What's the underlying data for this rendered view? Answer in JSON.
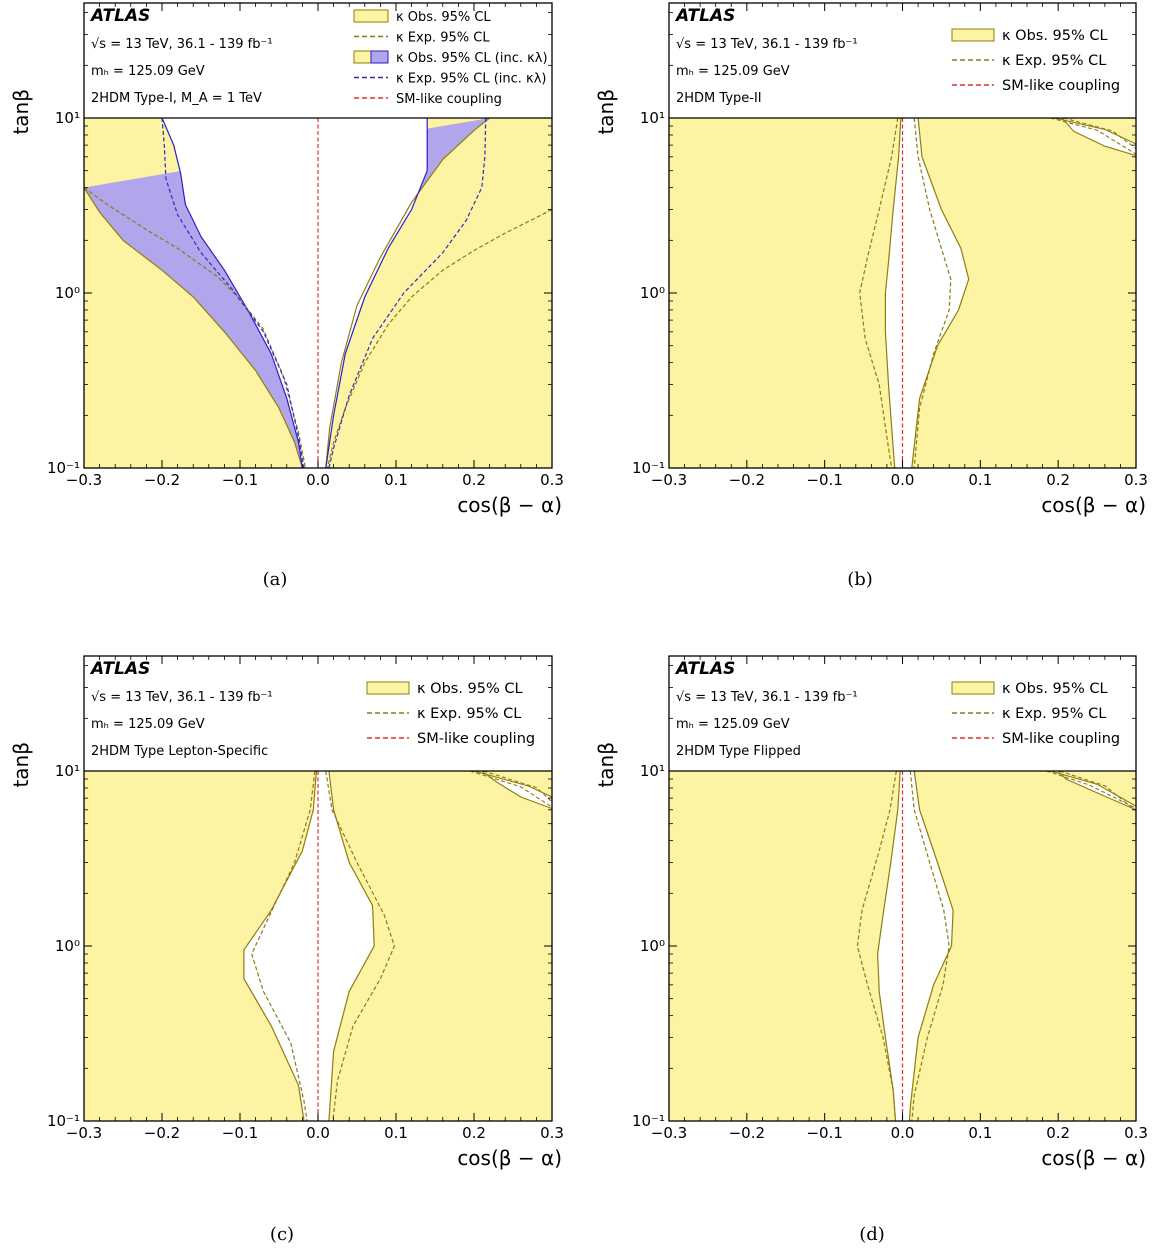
{
  "colors": {
    "obs_fill": "#fcf3a3",
    "obs_line": "#8f7d0f",
    "exp_line": "#8c7a14",
    "inc_fill": "#b1a6ec",
    "inc_line": "#2a1fc8",
    "inc_exp_line": "#2c2cc0",
    "sm_line": "#e0302e"
  },
  "panels": [
    {
      "caption": "(a)",
      "atlas": "ATLAS",
      "info": [
        "√s = 13 TeV, 36.1 - 139 fb⁻¹",
        "mₕ = 125.09 GeV",
        "2HDM Type-I, M_A = 1 TeV"
      ],
      "legend": [
        "κ Obs. 95% CL",
        "κ Exp. 95% CL",
        "κ Obs. 95% CL (inc. κλ)",
        "κ Exp. 95% CL (inc. κλ)",
        "SM-like coupling"
      ],
      "xlabel": "cos(β − α)",
      "ylabel": "tanβ"
    },
    {
      "caption": "(b)",
      "atlas": "ATLAS",
      "info": [
        "√s = 13 TeV, 36.1 - 139 fb⁻¹",
        "mₕ = 125.09 GeV",
        "2HDM Type-II"
      ],
      "legend": [
        "κ Obs. 95% CL",
        "κ Exp. 95% CL",
        "SM-like coupling"
      ],
      "xlabel": "cos(β − α)",
      "ylabel": "tanβ"
    },
    {
      "caption": "(c)",
      "atlas": "ATLAS",
      "info": [
        "√s = 13 TeV, 36.1 - 139 fb⁻¹",
        "mₕ = 125.09 GeV",
        "2HDM Type Lepton-Specific"
      ],
      "legend": [
        "κ Obs. 95% CL",
        "κ Exp. 95% CL",
        "SM-like coupling"
      ],
      "xlabel": "cos(β − α)",
      "ylabel": "tanβ"
    },
    {
      "caption": "(d)",
      "atlas": "ATLAS",
      "info": [
        "√s = 13 TeV, 36.1 - 139 fb⁻¹",
        "mₕ = 125.09 GeV",
        "2HDM Type Flipped"
      ],
      "legend": [
        "κ Obs. 95% CL",
        "κ Exp. 95% CL",
        "SM-like coupling"
      ],
      "xlabel": "cos(β − α)",
      "ylabel": "tanβ"
    }
  ],
  "chart_data": [
    {
      "type": "area",
      "x_axis": {
        "range": [
          -0.3,
          0.3
        ],
        "ticks": [
          "−0.3",
          "−0.2",
          "−0.1",
          "0.0",
          "0.1",
          "0.2",
          "0.3"
        ]
      },
      "y_axis": {
        "scale": "log",
        "range": [
          0.1,
          10
        ],
        "ticks": [
          "10⁻¹",
          "10⁰",
          "10¹"
        ]
      },
      "sm_line_x": 0.0,
      "obs_allowed": {
        "left": [
          [
            -0.3,
            4.0
          ],
          [
            -0.28,
            2.9
          ],
          [
            -0.25,
            2.0
          ],
          [
            -0.2,
            1.35
          ],
          [
            -0.16,
            0.95
          ],
          [
            -0.12,
            0.6
          ],
          [
            -0.08,
            0.36
          ],
          [
            -0.05,
            0.22
          ],
          [
            -0.03,
            0.14
          ],
          [
            -0.02,
            0.1
          ]
        ],
        "right": [
          [
            0.22,
            10.0
          ],
          [
            0.2,
            8.5
          ],
          [
            0.16,
            5.8
          ],
          [
            0.12,
            3.3
          ],
          [
            0.08,
            1.6
          ],
          [
            0.05,
            0.85
          ],
          [
            0.03,
            0.4
          ],
          [
            0.015,
            0.17
          ],
          [
            0.01,
            0.1
          ]
        ]
      },
      "exp_allowed": {
        "left": [
          [
            -0.3,
            4.0
          ],
          [
            -0.27,
            3.2
          ],
          [
            -0.22,
            2.3
          ],
          [
            -0.18,
            1.8
          ],
          [
            -0.13,
            1.25
          ],
          [
            -0.1,
            0.92
          ],
          [
            -0.07,
            0.62
          ],
          [
            -0.045,
            0.34
          ],
          [
            -0.025,
            0.16
          ],
          [
            -0.016,
            0.1
          ]
        ],
        "right": [
          [
            0.3,
            3.0
          ],
          [
            0.28,
            2.7
          ],
          [
            0.24,
            2.2
          ],
          [
            0.2,
            1.75
          ],
          [
            0.16,
            1.35
          ],
          [
            0.12,
            0.95
          ],
          [
            0.09,
            0.66
          ],
          [
            0.06,
            0.4
          ],
          [
            0.035,
            0.22
          ],
          [
            0.02,
            0.14
          ],
          [
            0.012,
            0.1
          ]
        ]
      },
      "inc_kl_obs_allowed": {
        "left": [
          [
            -0.2,
            10.0
          ],
          [
            -0.185,
            7.0
          ],
          [
            -0.176,
            4.8
          ],
          [
            -0.17,
            3.2
          ],
          [
            -0.15,
            2.1
          ],
          [
            -0.12,
            1.35
          ],
          [
            -0.09,
            0.8
          ],
          [
            -0.06,
            0.45
          ],
          [
            -0.04,
            0.25
          ],
          [
            -0.025,
            0.14
          ],
          [
            -0.02,
            0.1
          ]
        ],
        "right": [
          [
            0.14,
            10.0
          ],
          [
            0.14,
            8.0
          ],
          [
            0.14,
            5.0
          ],
          [
            0.12,
            3.0
          ],
          [
            0.09,
            1.8
          ],
          [
            0.06,
            0.95
          ],
          [
            0.035,
            0.45
          ],
          [
            0.02,
            0.2
          ],
          [
            0.01,
            0.1
          ]
        ]
      },
      "inc_kl_exp_allowed": {
        "left": [
          [
            -0.2,
            10.0
          ],
          [
            -0.197,
            7.0
          ],
          [
            -0.195,
            4.5
          ],
          [
            -0.18,
            2.8
          ],
          [
            -0.15,
            1.7
          ],
          [
            -0.11,
            1.05
          ],
          [
            -0.07,
            0.6
          ],
          [
            -0.04,
            0.3
          ],
          [
            -0.025,
            0.15
          ],
          [
            -0.018,
            0.1
          ]
        ],
        "right": [
          [
            0.215,
            10.0
          ],
          [
            0.214,
            6.0
          ],
          [
            0.21,
            4.0
          ],
          [
            0.19,
            2.6
          ],
          [
            0.16,
            1.7
          ],
          [
            0.11,
            1.0
          ],
          [
            0.07,
            0.55
          ],
          [
            0.04,
            0.26
          ],
          [
            0.02,
            0.13
          ],
          [
            0.014,
            0.1
          ]
        ]
      }
    },
    {
      "type": "area",
      "x_axis": {
        "range": [
          -0.3,
          0.3
        ],
        "ticks": [
          "−0.3",
          "−0.2",
          "−0.1",
          "0.0",
          "0.1",
          "0.2",
          "0.3"
        ]
      },
      "y_axis": {
        "scale": "log",
        "range": [
          0.1,
          10
        ],
        "ticks": [
          "10⁻¹",
          "10⁰",
          "10¹"
        ]
      },
      "sm_line_x": 0.0,
      "obs_allowed": {
        "left": [
          [
            -0.002,
            10.0
          ],
          [
            -0.005,
            6.0
          ],
          [
            -0.012,
            3.0
          ],
          [
            -0.018,
            1.5
          ],
          [
            -0.022,
            1.0
          ],
          [
            -0.022,
            0.6
          ],
          [
            -0.018,
            0.3
          ],
          [
            -0.013,
            0.15
          ],
          [
            -0.01,
            0.1
          ]
        ],
        "right": [
          [
            0.02,
            10.0
          ],
          [
            0.025,
            6.0
          ],
          [
            0.05,
            3.0
          ],
          [
            0.075,
            1.8
          ],
          [
            0.085,
            1.2
          ],
          [
            0.072,
            0.8
          ],
          [
            0.045,
            0.5
          ],
          [
            0.022,
            0.25
          ],
          [
            0.012,
            0.1
          ]
        ]
      },
      "exp_allowed": {
        "left": [
          [
            -0.006,
            10.0
          ],
          [
            -0.014,
            6.0
          ],
          [
            -0.03,
            3.0
          ],
          [
            -0.045,
            1.6
          ],
          [
            -0.055,
            1.0
          ],
          [
            -0.048,
            0.55
          ],
          [
            -0.03,
            0.3
          ],
          [
            -0.02,
            0.15
          ],
          [
            -0.014,
            0.1
          ]
        ],
        "right": [
          [
            0.015,
            10.0
          ],
          [
            0.02,
            6.0
          ],
          [
            0.035,
            3.0
          ],
          [
            0.05,
            1.8
          ],
          [
            0.062,
            1.2
          ],
          [
            0.06,
            0.8
          ],
          [
            0.04,
            0.45
          ],
          [
            0.022,
            0.22
          ],
          [
            0.015,
            0.1
          ]
        ]
      },
      "obs_allowed_corner": [
        [
          0.195,
          10.0
        ],
        [
          0.26,
          8.6
        ],
        [
          0.3,
          7.1
        ],
        [
          0.3,
          6.1
        ],
        [
          0.26,
          6.9
        ],
        [
          0.22,
          8.4
        ],
        [
          0.205,
          10.0
        ]
      ]
    },
    {
      "type": "area",
      "x_axis": {
        "range": [
          -0.3,
          0.3
        ],
        "ticks": [
          "−0.3",
          "−0.2",
          "−0.1",
          "0.0",
          "0.1",
          "0.2",
          "0.3"
        ]
      },
      "y_axis": {
        "scale": "log",
        "range": [
          0.1,
          10
        ],
        "ticks": [
          "10⁻¹",
          "10⁰",
          "10¹"
        ]
      },
      "sm_line_x": 0.0,
      "obs_allowed": {
        "left": [
          [
            -0.002,
            10.0
          ],
          [
            -0.006,
            6.0
          ],
          [
            -0.02,
            3.5
          ],
          [
            -0.06,
            1.6
          ],
          [
            -0.095,
            0.95
          ],
          [
            -0.095,
            0.65
          ],
          [
            -0.06,
            0.35
          ],
          [
            -0.025,
            0.16
          ],
          [
            -0.018,
            0.1
          ]
        ],
        "right": [
          [
            0.014,
            10.0
          ],
          [
            0.02,
            6.0
          ],
          [
            0.04,
            3.0
          ],
          [
            0.07,
            1.7
          ],
          [
            0.072,
            1.0
          ],
          [
            0.04,
            0.55
          ],
          [
            0.02,
            0.25
          ],
          [
            0.014,
            0.1
          ]
        ]
      },
      "exp_allowed": {
        "left": [
          [
            -0.004,
            10.0
          ],
          [
            -0.01,
            6.0
          ],
          [
            -0.03,
            3.0
          ],
          [
            -0.065,
            1.4
          ],
          [
            -0.085,
            0.9
          ],
          [
            -0.07,
            0.55
          ],
          [
            -0.035,
            0.28
          ],
          [
            -0.018,
            0.13
          ],
          [
            -0.014,
            0.1
          ]
        ],
        "right": [
          [
            0.01,
            10.0
          ],
          [
            0.018,
            6.0
          ],
          [
            0.05,
            3.0
          ],
          [
            0.085,
            1.5
          ],
          [
            0.098,
            1.0
          ],
          [
            0.08,
            0.65
          ],
          [
            0.045,
            0.35
          ],
          [
            0.025,
            0.17
          ],
          [
            0.019,
            0.1
          ]
        ]
      },
      "obs_allowed_corner": [
        [
          0.2,
          10.0
        ],
        [
          0.27,
          8.2
        ],
        [
          0.3,
          7.1
        ],
        [
          0.3,
          6.1
        ],
        [
          0.26,
          7.1
        ],
        [
          0.23,
          8.6
        ],
        [
          0.21,
          10.0
        ]
      ]
    },
    {
      "type": "area",
      "x_axis": {
        "range": [
          -0.3,
          0.3
        ],
        "ticks": [
          "−0.3",
          "−0.2",
          "−0.1",
          "0.0",
          "0.1",
          "0.2",
          "0.3"
        ]
      },
      "y_axis": {
        "scale": "log",
        "range": [
          0.1,
          10
        ],
        "ticks": [
          "10⁻¹",
          "10⁰",
          "10¹"
        ]
      },
      "sm_line_x": 0.0,
      "obs_allowed": {
        "left": [
          [
            -0.003,
            10.0
          ],
          [
            -0.006,
            6.0
          ],
          [
            -0.015,
            3.0
          ],
          [
            -0.025,
            1.5
          ],
          [
            -0.032,
            0.9
          ],
          [
            -0.03,
            0.55
          ],
          [
            -0.022,
            0.3
          ],
          [
            -0.012,
            0.15
          ],
          [
            -0.009,
            0.1
          ]
        ],
        "right": [
          [
            0.015,
            10.0
          ],
          [
            0.022,
            6.0
          ],
          [
            0.045,
            3.0
          ],
          [
            0.065,
            1.6
          ],
          [
            0.063,
            1.0
          ],
          [
            0.04,
            0.6
          ],
          [
            0.02,
            0.3
          ],
          [
            0.01,
            0.12
          ],
          [
            0.009,
            0.1
          ]
        ]
      },
      "exp_allowed": {
        "left": [
          [
            -0.008,
            10.0
          ],
          [
            -0.016,
            6.0
          ],
          [
            -0.03,
            3.5
          ],
          [
            -0.052,
            1.6
          ],
          [
            -0.058,
            1.0
          ],
          [
            -0.045,
            0.6
          ],
          [
            -0.025,
            0.3
          ],
          [
            -0.012,
            0.15
          ],
          [
            -0.009,
            0.1
          ]
        ],
        "right": [
          [
            0.01,
            10.0
          ],
          [
            0.015,
            6.0
          ],
          [
            0.035,
            3.0
          ],
          [
            0.053,
            1.6
          ],
          [
            0.06,
            1.0
          ],
          [
            0.052,
            0.6
          ],
          [
            0.032,
            0.3
          ],
          [
            0.015,
            0.14
          ],
          [
            0.012,
            0.1
          ]
        ]
      },
      "obs_allowed_corner": [
        [
          0.19,
          10.0
        ],
        [
          0.25,
          8.4
        ],
        [
          0.3,
          6.3
        ],
        [
          0.3,
          6.0
        ],
        [
          0.25,
          7.5
        ],
        [
          0.21,
          9.0
        ],
        [
          0.2,
          10.0
        ]
      ]
    }
  ]
}
